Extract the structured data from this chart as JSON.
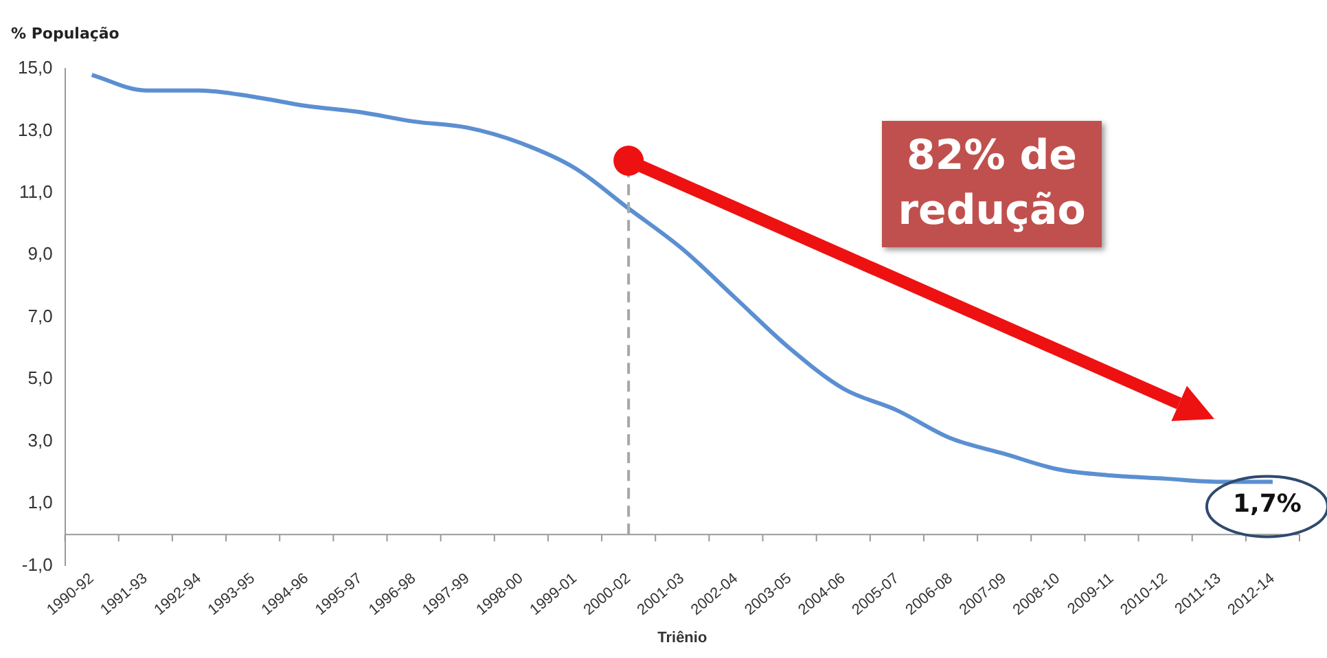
{
  "chart_data": {
    "type": "line",
    "xlabel": "Triênio",
    "ylabel": "% População",
    "categories": [
      "1990-92",
      "1991-93",
      "1992-94",
      "1993-95",
      "1994-96",
      "1995-97",
      "1996-98",
      "1997-99",
      "1998-00",
      "1999-01",
      "2000-02",
      "2001-03",
      "2002-04",
      "2003-05",
      "2004-06",
      "2005-07",
      "2006-08",
      "2007-09",
      "2008-10",
      "2009-11",
      "2010-12",
      "2011-13",
      "2012-14"
    ],
    "series": [
      {
        "color": "#5b8fd1",
        "values": [
          14.8,
          14.3,
          14.3,
          14.1,
          13.8,
          13.6,
          13.3,
          13.1,
          12.6,
          11.8,
          10.5,
          9.2,
          7.6,
          6.0,
          4.7,
          4.0,
          3.1,
          2.6,
          2.1,
          1.9,
          1.8,
          1.7,
          1.7
        ]
      }
    ],
    "ylim": [
      -1,
      15
    ],
    "yticks": [
      {
        "value": -1,
        "label": "-1,0"
      },
      {
        "value": 1,
        "label": "1,0"
      },
      {
        "value": 3,
        "label": "3,0"
      },
      {
        "value": 5,
        "label": "5,0"
      },
      {
        "value": 7,
        "label": "7,0"
      },
      {
        "value": 9,
        "label": "9,0"
      },
      {
        "value": 11,
        "label": "11,0"
      },
      {
        "value": 13,
        "label": "13,0"
      },
      {
        "value": 15,
        "label": "15,0"
      }
    ],
    "grid": false,
    "legend": false,
    "marker": "none",
    "line_style": "solid",
    "ref_lines": [
      {
        "axis": "x",
        "value": "2000-02",
        "color": "#a6a6a6",
        "line_style": "dashed"
      }
    ],
    "annotations": [
      "82% de redução",
      {
        "text": "1,7%",
        "x": "2012-14",
        "y": 1.7
      }
    ]
  }
}
